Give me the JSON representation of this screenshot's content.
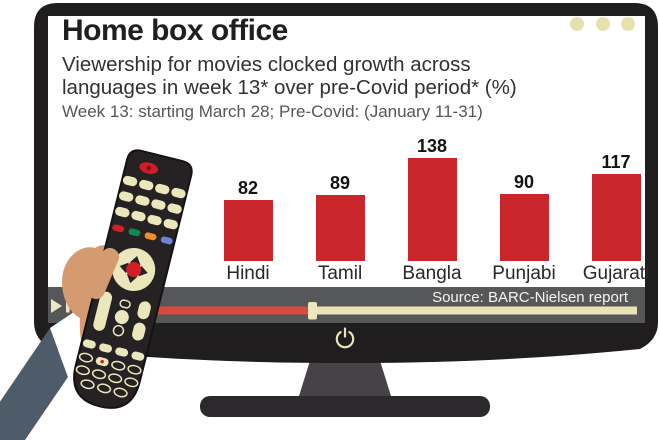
{
  "infographic": {
    "title": "Home box office",
    "subtitle_line1": "Viewership for movies clocked growth across",
    "subtitle_line2": "languages in week 13* over pre-Covid period* (%)",
    "note": "Week 13: starting March 28; Pre-Covid: (January 11-31)",
    "source": "Source: BARC-Nielsen report"
  },
  "chart_data": {
    "type": "bar",
    "categories": [
      "Hindi",
      "Tamil",
      "Bangla",
      "Punjabi",
      "Gujarati"
    ],
    "values": [
      82,
      89,
      138,
      90,
      117
    ],
    "title": "Home box office",
    "subtitle": "Viewership for movies clocked growth across languages in week 13* over pre-Covid period* (%)",
    "note": "Week 13: starting March 28; Pre-Covid: (January 11-31)",
    "source": "Source: BARC-Nielsen report",
    "xlabel": "",
    "ylabel": "",
    "ylim": [
      0,
      150
    ],
    "grid": false,
    "legend": false,
    "value_labels_shown": true,
    "bar_color": "#c9252b"
  },
  "player": {
    "play_icon": "play",
    "pause_icon": "pause",
    "progress_percent": 41,
    "power_icon": "power",
    "menu_dots_count": 3
  },
  "colors": {
    "bar_red": "#c9252b",
    "progress_red": "#d8493f",
    "cream": "#e9e3b6",
    "tv_frame": "#201d1e",
    "source_bar": "#565759",
    "sleeve": "#4e5b69",
    "cuff": "#ffffff",
    "skin": "#d39b6f",
    "remote_body": "#262223",
    "btn_green": "#0d8a51",
    "btn_orange": "#ef8e28",
    "btn_blue": "#6f82d8"
  }
}
